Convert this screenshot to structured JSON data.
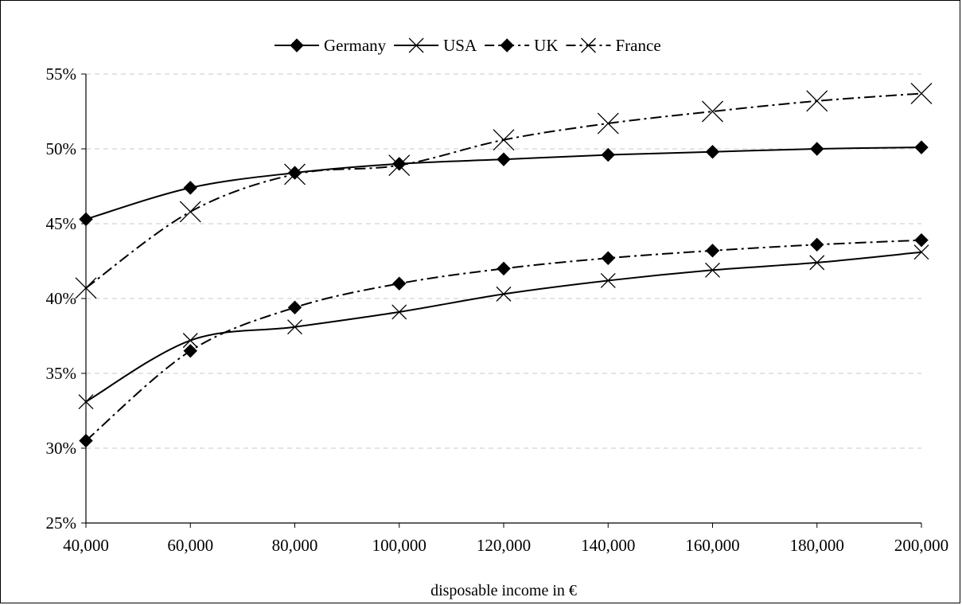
{
  "chart_data": {
    "type": "line",
    "title": "",
    "xlabel": "disposable income in €",
    "ylabel": "",
    "x": [
      40000,
      60000,
      80000,
      100000,
      120000,
      140000,
      160000,
      180000,
      200000
    ],
    "x_tick_labels": [
      "40,000",
      "60,000",
      "80,000",
      "100,000",
      "120,000",
      "140,000",
      "160,000",
      "180,000",
      "200,000"
    ],
    "ylim": [
      25,
      55
    ],
    "y_ticks": [
      25,
      30,
      35,
      40,
      45,
      50,
      55
    ],
    "y_tick_labels": [
      "25%",
      "30%",
      "35%",
      "40%",
      "45%",
      "50%",
      "55%"
    ],
    "grid": "horizontal dashed",
    "legend_position": "top-center",
    "series": [
      {
        "name": "Germany",
        "marker": "diamond",
        "line": "solid",
        "color": "#000000",
        "values": [
          45.3,
          47.4,
          48.4,
          49.0,
          49.3,
          49.6,
          49.8,
          50.0,
          50.1
        ]
      },
      {
        "name": "USA",
        "marker": "x",
        "line": "solid",
        "color": "#000000",
        "values": [
          33.1,
          37.2,
          38.1,
          39.1,
          40.3,
          41.2,
          41.9,
          42.4,
          43.1
        ]
      },
      {
        "name": "UK",
        "marker": "diamond",
        "line": "dashdot",
        "color": "#000000",
        "values": [
          30.5,
          36.5,
          39.4,
          41.0,
          42.0,
          42.7,
          43.2,
          43.6,
          43.9
        ]
      },
      {
        "name": "France",
        "marker": "x",
        "line": "dashdot",
        "color": "#000000",
        "values": [
          40.7,
          45.8,
          48.3,
          48.9,
          50.6,
          51.7,
          52.5,
          53.2,
          53.7
        ]
      }
    ]
  }
}
